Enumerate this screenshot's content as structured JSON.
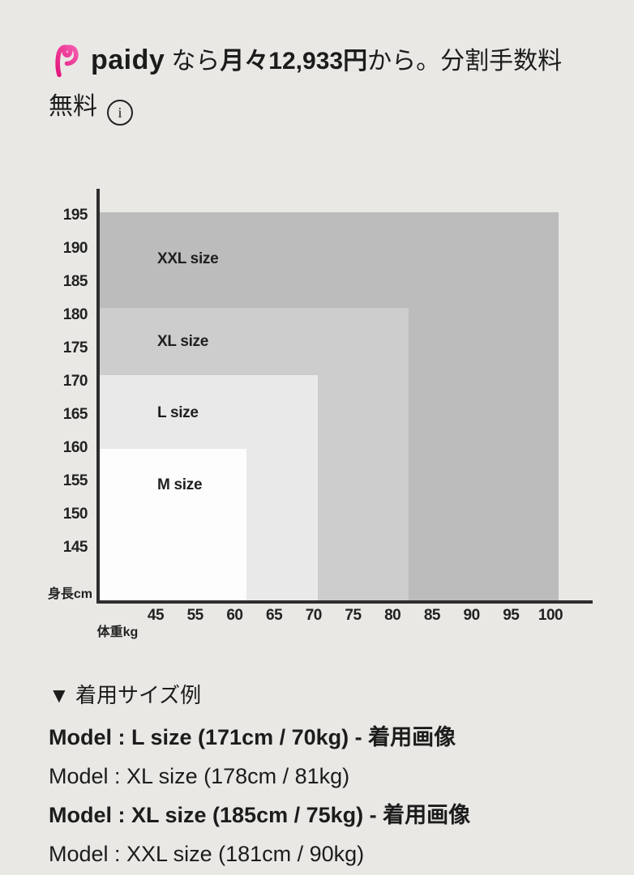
{
  "page": {
    "background": "#e9e8e5",
    "text_color": "#1c1c1c"
  },
  "paidy_banner": {
    "brand": "paidy",
    "brand_color": "#ec2a8c",
    "text_before_emphasis": "なら",
    "emphasis": "月々12,933円",
    "text_after_emphasis": "から。分割手数料",
    "line2_text": "無料",
    "info_icon_glyph": "i"
  },
  "chart_data": {
    "type": "area",
    "title": "",
    "description": "Nested garment size-range chart: each rectangle spans from the axes origin up to the maximum height (cm) and maximum weight (kg) that the size fits",
    "ylabel": "身長cm",
    "xlabel": "体重kg",
    "y_ticks": [
      "195",
      "190",
      "185",
      "180",
      "175",
      "170",
      "165",
      "160",
      "155",
      "150",
      "145"
    ],
    "x_ticks": [
      "45",
      "55",
      "60",
      "65",
      "70",
      "75",
      "80",
      "85",
      "90",
      "95",
      "100"
    ],
    "ylim": [
      137,
      196
    ],
    "axis_color": "#2e2e2e",
    "series": [
      {
        "name": "XXL size",
        "height_max_cm": 195.4,
        "weight_max_kg": 101,
        "color": "#bcbcbc",
        "label_at_cm": 188.3
      },
      {
        "name": "XL size",
        "height_max_cm": 181.0,
        "weight_max_kg": 82,
        "color": "#cdcdcd",
        "label_at_cm": 175.9
      },
      {
        "name": "L size",
        "height_max_cm": 170.8,
        "weight_max_kg": 70.5,
        "color": "#e9e9e9",
        "label_at_cm": 165.1
      },
      {
        "name": "M size",
        "height_max_cm": 159.7,
        "weight_max_kg": 61.5,
        "color": "#fdfdfd",
        "label_at_cm": 154.3
      }
    ]
  },
  "size_examples": {
    "heading": "▼ 着用サイズ例",
    "rows": [
      {
        "text": "Model : L size (171cm / 70kg) - 着用画像",
        "bold": true
      },
      {
        "text": "Model : XL size (178cm / 81kg)",
        "bold": false
      },
      {
        "text": "Model : XL size (185cm / 75kg) - 着用画像",
        "bold": true
      },
      {
        "text": "Model : XXL size (181cm / 90kg)",
        "bold": false
      }
    ]
  }
}
